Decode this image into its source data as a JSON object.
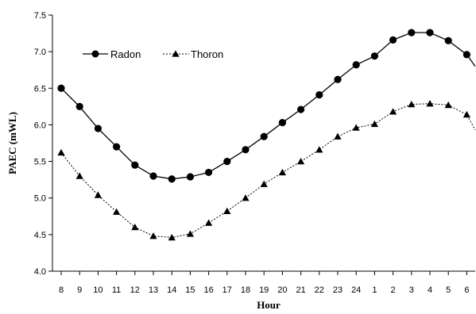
{
  "chart_data": {
    "type": "line",
    "title": "",
    "xlabel": "Hour",
    "ylabel": "PAEC (mWL)",
    "categories": [
      "8",
      "9",
      "10",
      "11",
      "12",
      "13",
      "14",
      "15",
      "16",
      "17",
      "18",
      "19",
      "20",
      "21",
      "22",
      "23",
      "24",
      "1",
      "2",
      "3",
      "4",
      "5",
      "6"
    ],
    "ylim": [
      4.0,
      7.5
    ],
    "yticks": [
      "4.0",
      "4.5",
      "5.0",
      "5.5",
      "6.0",
      "6.5",
      "7.0",
      "7.5"
    ],
    "grid": false,
    "legend_position": "top-left",
    "series": [
      {
        "name": "Radon",
        "marker": "circle",
        "line": "solid",
        "values": [
          6.5,
          6.25,
          5.95,
          5.7,
          5.45,
          5.3,
          5.26,
          5.29,
          5.35,
          5.5,
          5.66,
          5.84,
          6.03,
          6.21,
          6.41,
          6.62,
          6.82,
          6.94,
          7.16,
          7.26,
          7.26,
          7.15,
          6.96
        ],
        "end_value": 6.8
      },
      {
        "name": "Thoron",
        "marker": "triangle",
        "line": "dotted",
        "values": [
          5.62,
          5.3,
          5.04,
          4.81,
          4.6,
          4.48,
          4.46,
          4.51,
          4.66,
          4.82,
          5.0,
          5.19,
          5.35,
          5.5,
          5.66,
          5.84,
          5.96,
          6.01,
          6.18,
          6.28,
          6.29,
          6.27,
          6.14
        ],
        "end_value": 5.93
      }
    ]
  }
}
